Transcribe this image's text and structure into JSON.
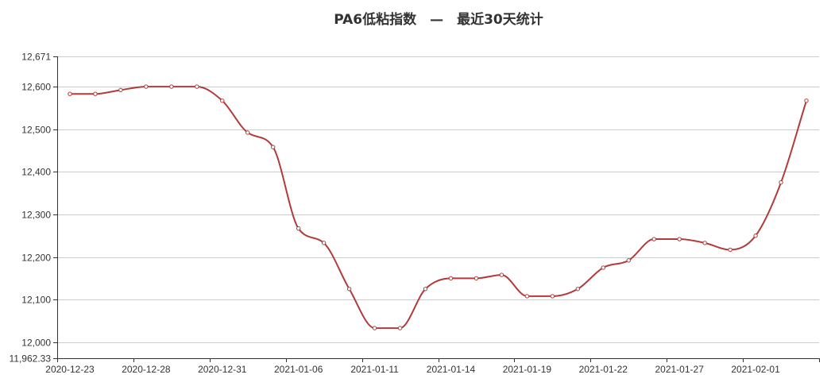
{
  "chart_data": {
    "type": "line",
    "title": "PA6低粘指数　—　最近30天统计",
    "xlabel": "",
    "ylabel": "",
    "ylim": [
      11962.33,
      12671
    ],
    "y_ticks": [
      "12,671",
      "12,600",
      "12,500",
      "12,400",
      "12,300",
      "12,200",
      "12,100",
      "12,000",
      "11,962.33"
    ],
    "y_tick_values": [
      12671,
      12600,
      12500,
      12400,
      12300,
      12200,
      12100,
      12000,
      11962.33
    ],
    "x_tick_labels": [
      "2020-12-23",
      "2020-12-28",
      "2020-12-31",
      "2021-01-06",
      "2021-01-11",
      "2021-01-14",
      "2021-01-19",
      "2021-01-22",
      "2021-01-27",
      "2021-02-01"
    ],
    "grid": true,
    "smooth": true,
    "colors": {
      "line": "#b33a3a",
      "grid": "#cccccc",
      "axis": "#333333",
      "point_fill": "#ffffff"
    },
    "series": [
      {
        "values": [
          12583,
          12583,
          12592,
          12600,
          12600,
          12600,
          12567,
          12492,
          12458,
          12267,
          12233,
          12125,
          12033,
          12033,
          12125,
          12150,
          12150,
          12158,
          12108,
          12108,
          12125,
          12175,
          12192,
          12242,
          12242,
          12233,
          12217,
          12250,
          12375,
          12567
        ]
      }
    ]
  }
}
